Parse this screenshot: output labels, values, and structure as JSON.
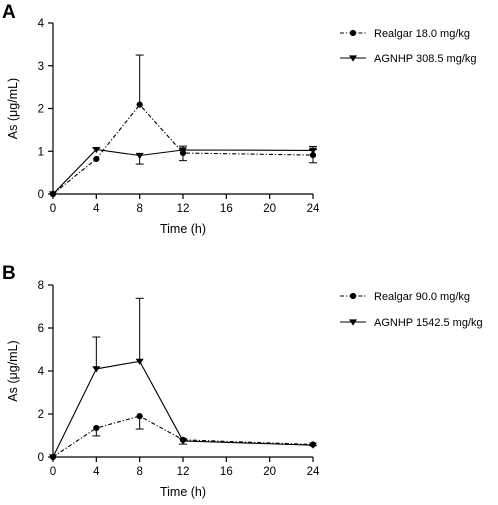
{
  "chart_data": [
    {
      "type": "line",
      "panel": "A",
      "title": "",
      "xlabel": "Time (h)",
      "ylabel": "As (μg/mL)",
      "xlim": [
        0,
        24
      ],
      "ylim": [
        0,
        4
      ],
      "x_ticks": [
        0,
        4,
        8,
        12,
        16,
        20,
        24
      ],
      "y_ticks": [
        0,
        1,
        2,
        3,
        4
      ],
      "legend_position": "right",
      "series": [
        {
          "name": "Realgar 18.0 mg/kg",
          "marker": "circle",
          "line_style": "dash-dot",
          "x": [
            0,
            4,
            8,
            12,
            24
          ],
          "y": [
            0,
            0.82,
            2.09,
            0.96,
            0.91
          ],
          "err_upper": [
            0,
            0,
            1.16,
            0.16,
            0.13
          ],
          "err_lower": [
            0,
            0,
            0,
            0.18,
            0.18
          ]
        },
        {
          "name": "AGNHP 308.5 mg/kg",
          "marker": "triangle-down",
          "line_style": "solid",
          "x": [
            0,
            4,
            8,
            12,
            24
          ],
          "y": [
            0,
            1.04,
            0.9,
            1.03,
            1.02
          ],
          "err_upper": [
            0,
            0.04,
            0,
            0,
            0.09
          ],
          "err_lower": [
            0,
            0,
            0.2,
            0,
            0
          ]
        }
      ]
    },
    {
      "type": "line",
      "panel": "B",
      "title": "",
      "xlabel": "Time (h)",
      "ylabel": "As (μg/mL)",
      "xlim": [
        0,
        24
      ],
      "ylim": [
        0,
        8
      ],
      "x_ticks": [
        0,
        4,
        8,
        12,
        16,
        20,
        24
      ],
      "y_ticks": [
        0,
        2,
        4,
        6,
        8
      ],
      "legend_position": "right",
      "series": [
        {
          "name": "Realgar 90.0 mg/kg",
          "marker": "circle",
          "line_style": "dash-dot",
          "x": [
            0,
            4,
            8,
            12,
            24
          ],
          "y": [
            0,
            1.35,
            1.9,
            0.8,
            0.58
          ],
          "err_upper": [
            0,
            0,
            0,
            0,
            0
          ],
          "err_lower": [
            0,
            0.37,
            0.6,
            0.2,
            0.05
          ]
        },
        {
          "name": "AGNHP 1542.5 mg/kg",
          "marker": "triangle-down",
          "line_style": "solid",
          "x": [
            0,
            4,
            8,
            12,
            24
          ],
          "y": [
            0,
            4.1,
            4.45,
            0.75,
            0.55
          ],
          "err_upper": [
            0,
            1.48,
            2.93,
            0.1,
            0
          ],
          "err_lower": [
            0,
            0,
            0,
            0,
            0
          ]
        }
      ]
    }
  ]
}
